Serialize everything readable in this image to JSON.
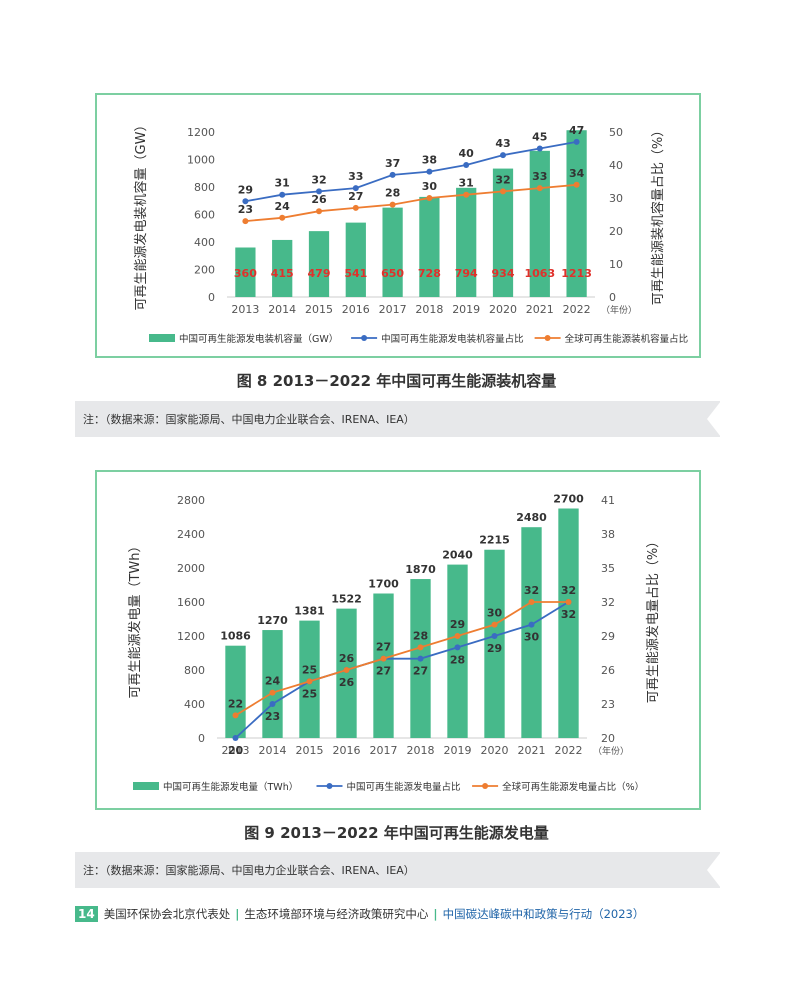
{
  "chart_data": [
    {
      "type": "bar+line",
      "caption": "图 8  2013－2022 年中国可再生能源装机容量",
      "categories": [
        "2013",
        "2014",
        "2015",
        "2016",
        "2017",
        "2018",
        "2019",
        "2020",
        "2021",
        "2022"
      ],
      "x_unit": "（年份）",
      "ylabel_left": "可再生能源发电装机容量（GW）",
      "ylabel_right": "可再生能源装机容量占比（%）",
      "ylim_left": [
        0,
        1200
      ],
      "yticks_left": [
        0,
        200,
        400,
        600,
        800,
        1000,
        1200
      ],
      "ylim_right": [
        0,
        50
      ],
      "yticks_right": [
        0,
        10,
        20,
        30,
        40,
        50
      ],
      "series": [
        {
          "name": "中国可再生能源发电装机容量（GW）",
          "kind": "bar",
          "axis": "left",
          "color": "#47b98b",
          "label_color": "#e0312b",
          "values": [
            360,
            415,
            479,
            541,
            650,
            728,
            794,
            934,
            1063,
            1213
          ]
        },
        {
          "name": "中国可再生能源发电装机容量占比",
          "kind": "line",
          "axis": "right",
          "color": "#3a6cc2",
          "label_pos": "above",
          "values": [
            29,
            31,
            32,
            33,
            37,
            38,
            40,
            43,
            45,
            47
          ]
        },
        {
          "name": "全球可再生能源装机容量占比",
          "kind": "line",
          "axis": "right",
          "color": "#ee7d31",
          "label_pos": "above",
          "values": [
            23,
            24,
            26,
            27,
            28,
            30,
            31,
            32,
            33,
            34
          ]
        }
      ]
    },
    {
      "type": "bar+line",
      "caption": "图 9  2013－2022 年中国可再生能源发电量",
      "categories": [
        "2013",
        "2014",
        "2015",
        "2016",
        "2017",
        "2018",
        "2019",
        "2020",
        "2021",
        "2022"
      ],
      "x_unit": "（年份）",
      "ylabel_left": "可再生能源发电量（TWh）",
      "ylabel_right": "可再生能源发电量占比（%）",
      "ylim_left": [
        0,
        2800
      ],
      "yticks_left": [
        0,
        400,
        800,
        1200,
        1600,
        2000,
        2400,
        2800
      ],
      "ylim_right": [
        20,
        41
      ],
      "yticks_right": [
        20,
        23,
        26,
        29,
        32,
        35,
        38,
        41
      ],
      "series": [
        {
          "name": "中国可再生能源发电量（TWh）",
          "kind": "bar",
          "axis": "left",
          "color": "#47b98b",
          "label_color": "#333333",
          "label_outside": true,
          "values": [
            1086,
            1270,
            1381,
            1522,
            1700,
            1870,
            2040,
            2215,
            2480,
            2700
          ]
        },
        {
          "name": "中国可再生能源发电量占比",
          "kind": "line",
          "axis": "right",
          "color": "#3a6cc2",
          "label_pos": "below",
          "values": [
            20,
            23,
            25,
            26,
            27,
            27,
            28,
            29,
            30,
            32
          ]
        },
        {
          "name": "全球可再生能源发电量占比（%）",
          "kind": "line",
          "axis": "right",
          "color": "#ee7d31",
          "label_pos": "above",
          "values": [
            22,
            24,
            25,
            26,
            27,
            28,
            29,
            30,
            32,
            32
          ]
        }
      ]
    }
  ],
  "notes": {
    "fig8": "注：（数据来源：国家能源局、中国电力企业联合会、IRENA、IEA）",
    "fig9": "注：（数据来源：国家能源局、中国电力企业联合会、IRENA、IEA）"
  },
  "footer": {
    "page_number": "14",
    "org1": "美国环保协会北京代表处",
    "sep": "|",
    "org2": "生态环境部环境与经济政策研究中心",
    "title": "中国碳达峰碳中和政策与行动（2023）"
  }
}
